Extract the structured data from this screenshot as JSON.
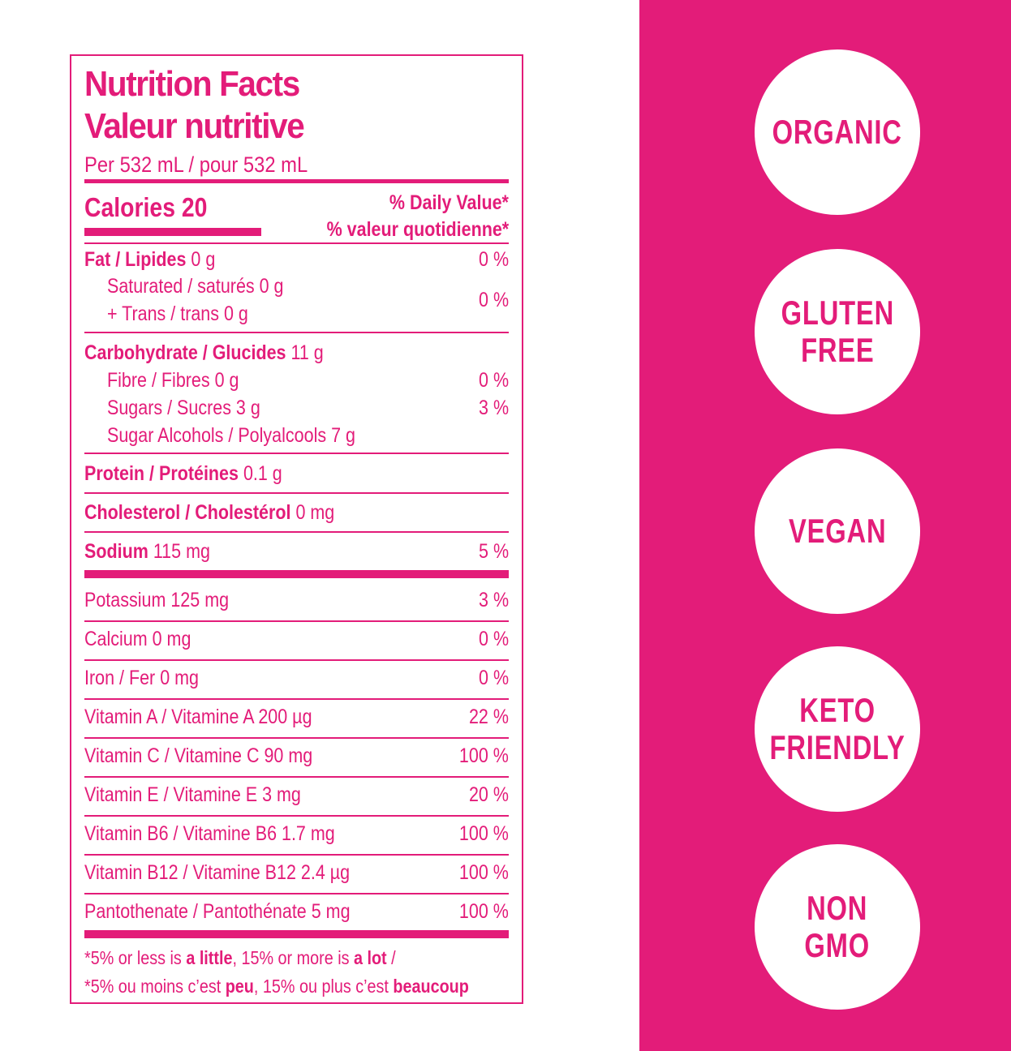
{
  "label": {
    "title_en": "Nutrition Facts",
    "title_fr": "Valeur nutritive",
    "serving": "Per 532 mL / pour 532 mL",
    "calories": "Calories 20",
    "dv_en": "% Daily Value*",
    "dv_fr": "% valeur quotidienne*",
    "fat": {
      "name": "Fat / Lipides",
      "amount": "0 g",
      "dv": "0 %"
    },
    "saturated": "Saturated / saturés 0 g",
    "trans": "+ Trans / trans 0 g",
    "sat_trans_dv": "0 %",
    "carb": {
      "name": "Carbohydrate / Glucides",
      "amount": "11 g"
    },
    "fibre": {
      "text": "Fibre / Fibres 0 g",
      "dv": "0 %"
    },
    "sugars": {
      "text": "Sugars / Sucres 3 g",
      "dv": "3 %"
    },
    "sugar_alcohols": "Sugar Alcohols / Polyalcools 7 g",
    "protein": {
      "name": "Protein / Protéines",
      "amount": "0.1 g"
    },
    "cholesterol": {
      "name": "Cholesterol / Cholestérol",
      "amount": "0 mg"
    },
    "sodium": {
      "name": "Sodium",
      "amount": "115 mg",
      "dv": "5 %"
    },
    "micros": [
      {
        "text": "Potassium 125 mg",
        "dv": "3 %"
      },
      {
        "text": "Calcium 0 mg",
        "dv": "0 %"
      },
      {
        "text": "Iron / Fer 0 mg",
        "dv": "0 %"
      },
      {
        "text": "Vitamin A / Vitamine A 200 µg",
        "dv": "22 %"
      },
      {
        "text": "Vitamin C / Vitamine C 90 mg",
        "dv": "100 %"
      },
      {
        "text": "Vitamin E / Vitamine E 3 mg",
        "dv": "20 %"
      },
      {
        "text": "Vitamin B6 / Vitamine B6 1.7 mg",
        "dv": "100 %"
      },
      {
        "text": "Vitamin B12 / Vitamine B12 2.4 µg",
        "dv": "100 %"
      },
      {
        "text": "Pantothenate / Pantothénate 5 mg",
        "dv": "100 %"
      }
    ],
    "footnote_en": {
      "a": "*5% or less is ",
      "b": "a little",
      "c": ", 15% or more is ",
      "d": "a lot",
      "e": " /"
    },
    "footnote_fr": {
      "a": "*5% ou moins c’est ",
      "b": "peu",
      "c": ", 15% ou plus c’est ",
      "d": "beaucoup"
    }
  },
  "badges": [
    "ORGANIC",
    "GLUTEN\nFREE",
    "VEGAN",
    "KETO\nFRIENDLY",
    "NON\nGMO"
  ],
  "colors": {
    "brand": "#e31c79",
    "background": "#ffffff"
  }
}
